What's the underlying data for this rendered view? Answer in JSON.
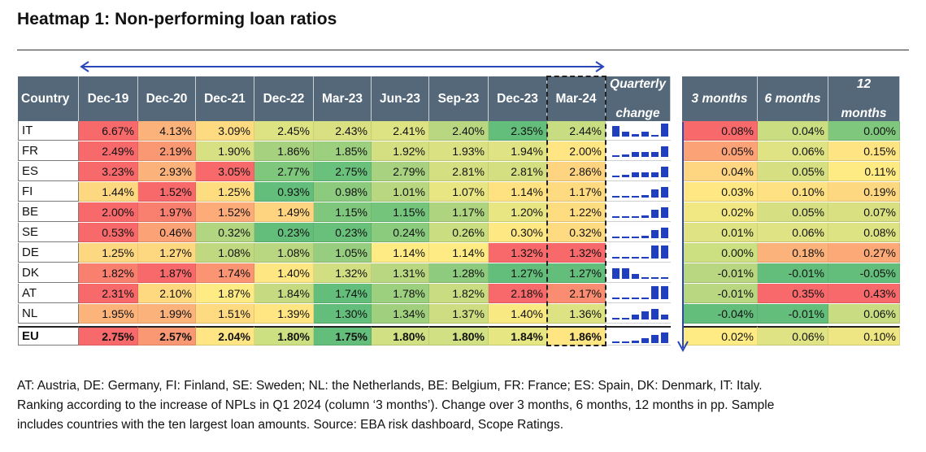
{
  "title": "Heatmap 1: Non-performing loan ratios",
  "headers": {
    "country": "Country",
    "dates": [
      "Dec-19",
      "Dec-20",
      "Dec-21",
      "Dec-22",
      "Mar-23",
      "Jun-23",
      "Sep-23",
      "Dec-23",
      "Mar-24"
    ],
    "quarterly_line1": "Quarterly",
    "quarterly_line2": "change",
    "m3": "3 months",
    "m6": "6 months",
    "m12_line1": "12",
    "m12_line2": "months"
  },
  "chart_data": {
    "type": "heatmap",
    "title": "Heatmap 1: Non-performing loan ratios",
    "countries": [
      "IT",
      "FR",
      "ES",
      "FI",
      "BE",
      "SE",
      "DE",
      "DK",
      "AT",
      "NL",
      "EU"
    ],
    "periods": [
      "Dec-19",
      "Dec-20",
      "Dec-21",
      "Dec-22",
      "Mar-23",
      "Jun-23",
      "Sep-23",
      "Dec-23",
      "Mar-24"
    ],
    "ratios": [
      [
        "6.67%",
        "4.13%",
        "3.09%",
        "2.45%",
        "2.43%",
        "2.41%",
        "2.40%",
        "2.35%",
        "2.44%"
      ],
      [
        "2.49%",
        "2.19%",
        "1.90%",
        "1.86%",
        "1.85%",
        "1.92%",
        "1.93%",
        "1.94%",
        "2.00%"
      ],
      [
        "3.23%",
        "2.93%",
        "3.05%",
        "2.77%",
        "2.75%",
        "2.79%",
        "2.81%",
        "2.81%",
        "2.86%"
      ],
      [
        "1.44%",
        "1.52%",
        "1.25%",
        "0.93%",
        "0.98%",
        "1.01%",
        "1.07%",
        "1.14%",
        "1.17%"
      ],
      [
        "2.00%",
        "1.97%",
        "1.52%",
        "1.49%",
        "1.15%",
        "1.15%",
        "1.17%",
        "1.20%",
        "1.22%"
      ],
      [
        "0.53%",
        "0.46%",
        "0.32%",
        "0.23%",
        "0.23%",
        "0.24%",
        "0.26%",
        "0.30%",
        "0.32%"
      ],
      [
        "1.25%",
        "1.27%",
        "1.08%",
        "1.08%",
        "1.05%",
        "1.14%",
        "1.14%",
        "1.32%",
        "1.32%"
      ],
      [
        "1.82%",
        "1.87%",
        "1.74%",
        "1.40%",
        "1.32%",
        "1.31%",
        "1.28%",
        "1.27%",
        "1.27%"
      ],
      [
        "2.31%",
        "2.10%",
        "1.87%",
        "1.84%",
        "1.74%",
        "1.78%",
        "1.82%",
        "2.18%",
        "2.17%"
      ],
      [
        "1.95%",
        "1.99%",
        "1.51%",
        "1.39%",
        "1.30%",
        "1.34%",
        "1.37%",
        "1.40%",
        "1.36%"
      ],
      [
        "2.75%",
        "2.57%",
        "2.04%",
        "1.80%",
        "1.75%",
        "1.80%",
        "1.80%",
        "1.84%",
        "1.86%"
      ]
    ],
    "ratio_colors": [
      [
        "#f8696b",
        "#fcb27b",
        "#fedb81",
        "#dde283",
        "#d9e082",
        "#dde283",
        "#b9d780",
        "#63be7b",
        "#c8dc81"
      ],
      [
        "#f8696b",
        "#fa9873",
        "#d7e082",
        "#a6d17e",
        "#9ccf7e",
        "#d4df82",
        "#dae183",
        "#e0e383",
        "#ffe683"
      ],
      [
        "#f8696b",
        "#fcb27b",
        "#f8696b",
        "#7ec77c",
        "#6ac17b",
        "#a8d27f",
        "#d4df82",
        "#d4df82",
        "#fed480"
      ],
      [
        "#fed880",
        "#f8696b",
        "#fedd81",
        "#63be7b",
        "#8cca7e",
        "#b9d780",
        "#e8e583",
        "#fee282",
        "#fedb81"
      ],
      [
        "#f8696b",
        "#f97f6f",
        "#fcab79",
        "#fed480",
        "#7ec77c",
        "#74c47c",
        "#aed47f",
        "#e8e583",
        "#fedd81"
      ],
      [
        "#f8696b",
        "#fba276",
        "#b1d580",
        "#63be7b",
        "#69c07b",
        "#8acb7e",
        "#cade81",
        "#fee883",
        "#fedb81"
      ],
      [
        "#fed880",
        "#fed880",
        "#c0d980",
        "#b9d780",
        "#96cd7e",
        "#ffeb84",
        "#ffeb84",
        "#f8696b",
        "#f8696b"
      ],
      [
        "#f97f6f",
        "#f8696b",
        "#fa9473",
        "#fee683",
        "#d1de82",
        "#b9d780",
        "#8ecb7e",
        "#63be7b",
        "#63be7b"
      ],
      [
        "#f8696b",
        "#fed980",
        "#ffeb84",
        "#c6db81",
        "#63be7b",
        "#9ccf7e",
        "#c9dc81",
        "#f8696b",
        "#fa8c71"
      ],
      [
        "#fcb47b",
        "#fcb27b",
        "#fedb81",
        "#ffe683",
        "#63be7b",
        "#a0d07e",
        "#cfdd82",
        "#f9e983",
        "#dde283"
      ],
      [
        "#f8696b",
        "#fa9873",
        "#ffe583",
        "#cde081",
        "#63be7b",
        "#d0e082",
        "#d0e082",
        "#e6e683",
        "#ffe683"
      ]
    ],
    "quarterly_change_bars": [
      [
        4,
        2,
        1,
        2,
        0,
        5
      ],
      [
        0,
        1,
        2,
        2,
        2,
        4
      ],
      [
        0,
        1,
        2,
        2,
        2,
        4
      ],
      [
        0,
        0,
        0,
        1,
        3,
        4
      ],
      [
        0,
        0,
        0,
        1,
        3,
        4
      ],
      [
        0,
        0,
        0,
        1,
        3,
        4
      ],
      [
        0,
        0,
        0,
        0,
        5,
        5
      ],
      [
        4,
        4,
        2,
        0,
        0,
        0
      ],
      [
        0,
        0,
        0,
        0,
        5,
        5
      ],
      [
        0,
        0,
        2,
        3,
        4,
        2
      ],
      [
        0,
        0,
        1,
        2,
        3,
        4
      ]
    ],
    "change_3m": [
      "0.08%",
      "0.05%",
      "0.04%",
      "0.03%",
      "0.02%",
      "0.01%",
      "0.00%",
      "-0.01%",
      "-0.01%",
      "-0.04%",
      "0.02%"
    ],
    "change_6m": [
      "0.04%",
      "0.06%",
      "0.05%",
      "0.10%",
      "0.05%",
      "0.06%",
      "0.18%",
      "-0.01%",
      "0.35%",
      "-0.01%",
      "0.06%"
    ],
    "change_12m": [
      "0.00%",
      "0.15%",
      "0.11%",
      "0.19%",
      "0.07%",
      "0.08%",
      "0.27%",
      "-0.05%",
      "0.43%",
      "0.06%",
      "0.10%"
    ],
    "change_3m_colors": [
      "#f8696b",
      "#fba276",
      "#fed580",
      "#ffe883",
      "#f2e883",
      "#dfe383",
      "#cce081",
      "#b9d780",
      "#b9d780",
      "#63be7b",
      "#ffeb84"
    ],
    "change_6m_colors": [
      "#cbdd81",
      "#dfe383",
      "#d6e082",
      "#fee182",
      "#d6e082",
      "#dfe383",
      "#fcb27b",
      "#63be7b",
      "#f8696b",
      "#63be7b",
      "#dfe383"
    ],
    "change_12m_colors": [
      "#7ec77c",
      "#fee483",
      "#ffeb84",
      "#fed880",
      "#d8e082",
      "#dde283",
      "#fca877",
      "#63be7b",
      "#f8696b",
      "#c9dc81",
      "#eee683"
    ],
    "bar_color": "#1f3fbf"
  },
  "notes": {
    "line1": "AT: Austria, DE: Germany, FI: Finland, SE: Sweden; NL: the Netherlands, BE: Belgium, FR: France; ES: Spain, DK: Denmark, IT: Italy.",
    "line2": "Ranking according to the increase of NPLs in Q1 2024 (column ‘3 months’). Change over 3 months, 6 months, 12 months in pp. Sample",
    "line3": "includes countries with the ten largest loan amounts. Source: EBA risk dashboard, Scope Ratings."
  }
}
